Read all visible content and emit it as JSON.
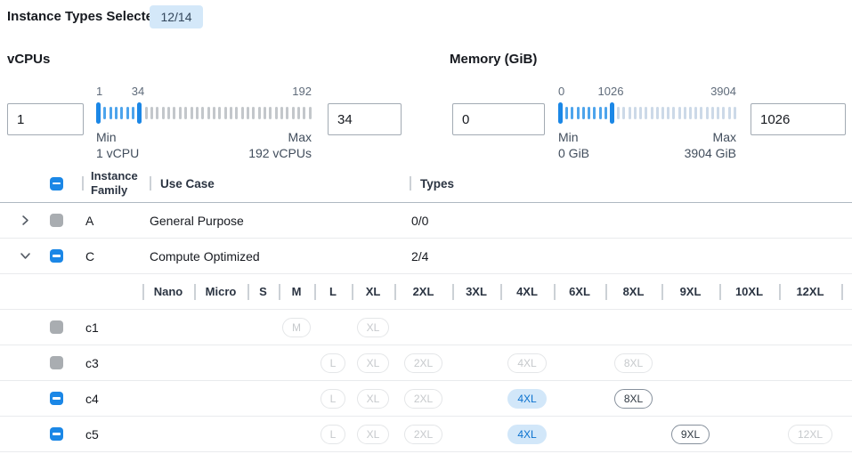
{
  "header": {
    "label": "Instance Types Selected:",
    "badge": "12/14"
  },
  "filters": {
    "vcpus": {
      "label": "vCPUs",
      "min_input": "1",
      "max_input": "34",
      "scale_start": "1",
      "scale_current": "34",
      "scale_end": "192",
      "min_caption": "Min",
      "min_detail": "1 vCPU",
      "max_caption": "Max",
      "max_detail": "192 vCPUs"
    },
    "memory": {
      "label": "Memory (GiB)",
      "min_input": "0",
      "max_input": "1026",
      "scale_start": "0",
      "scale_current": "1026",
      "scale_end": "3904",
      "min_caption": "Min",
      "min_detail": "0 GiB",
      "max_caption": "Max",
      "max_detail": "3904 GiB"
    }
  },
  "table": {
    "columns": {
      "family": "Instance Family",
      "use_case": "Use Case",
      "types": "Types"
    },
    "size_columns": [
      "Nano",
      "Micro",
      "S",
      "M",
      "L",
      "XL",
      "2XL",
      "3XL",
      "4XL",
      "6XL",
      "8XL",
      "9XL",
      "10XL",
      "12XL"
    ],
    "families": [
      {
        "name": "A",
        "use_case": "General Purpose",
        "types": "0/0",
        "expanded": false,
        "checkbox": "disabled"
      },
      {
        "name": "C",
        "use_case": "Compute Optimized",
        "types": "2/4",
        "expanded": true,
        "checkbox": "indeterminate"
      }
    ],
    "instances": [
      {
        "name": "c1",
        "checkbox": "disabled",
        "badges": [
          {
            "size": "M",
            "col": 3,
            "state": "disabled"
          },
          {
            "size": "XL",
            "col": 5,
            "state": "disabled"
          }
        ]
      },
      {
        "name": "c3",
        "checkbox": "disabled",
        "badges": [
          {
            "size": "L",
            "col": 4,
            "state": "disabled"
          },
          {
            "size": "XL",
            "col": 5,
            "state": "disabled"
          },
          {
            "size": "2XL",
            "col": 6,
            "state": "disabled"
          },
          {
            "size": "4XL",
            "col": 8,
            "state": "disabled"
          },
          {
            "size": "8XL",
            "col": 10,
            "state": "disabled"
          }
        ]
      },
      {
        "name": "c4",
        "checkbox": "indeterminate",
        "badges": [
          {
            "size": "L",
            "col": 4,
            "state": "disabled"
          },
          {
            "size": "XL",
            "col": 5,
            "state": "disabled"
          },
          {
            "size": "2XL",
            "col": 6,
            "state": "disabled"
          },
          {
            "size": "4XL",
            "col": 8,
            "state": "selected"
          },
          {
            "size": "8XL",
            "col": 10,
            "state": "enabled"
          }
        ]
      },
      {
        "name": "c5",
        "checkbox": "indeterminate",
        "badges": [
          {
            "size": "L",
            "col": 4,
            "state": "disabled"
          },
          {
            "size": "XL",
            "col": 5,
            "state": "disabled"
          },
          {
            "size": "2XL",
            "col": 6,
            "state": "disabled"
          },
          {
            "size": "4XL",
            "col": 8,
            "state": "selected"
          },
          {
            "size": "9XL",
            "col": 11,
            "state": "enabled"
          },
          {
            "size": "12XL",
            "col": 13,
            "state": "disabled"
          }
        ]
      }
    ]
  },
  "colors": {
    "accent_blue": "#1b87e6",
    "badge_selected_bg": "#d2e7f9",
    "badge_selected_text": "#0b72cf",
    "count_badge_bg": "#d4e8f9",
    "slider_inactive_gray": "#c3c7cb",
    "slider_inactive_blue": "#ccd9e8"
  }
}
